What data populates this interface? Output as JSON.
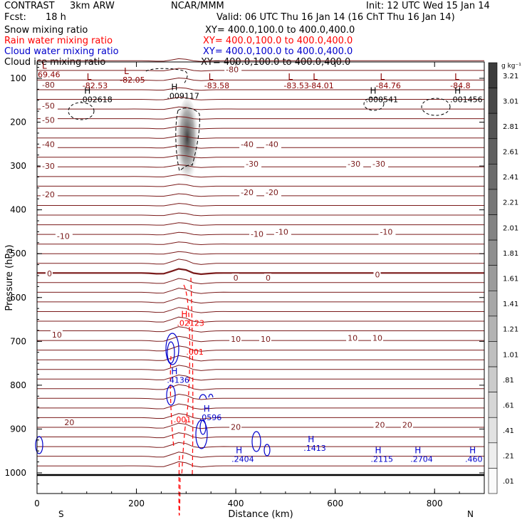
{
  "header": {
    "experiment": "CONTRAST",
    "model": "3km ARW",
    "institution": "NCAR/MMM",
    "init": "Init: 12 UTC Wed 15 Jan 14",
    "fcst_label": "Fcst:",
    "fcst_value": "18 h",
    "valid": "Valid: 06 UTC Thu 16 Jan 14 (16 ChT Thu 16 Jan 14)"
  },
  "fields": [
    {
      "name": "Snow mixing ratio",
      "xy": "XY= 400.0,100.0 to 400.0,400.0",
      "color": "#000000"
    },
    {
      "name": "Rain water mixing ratio",
      "xy": "XY= 400.0,100.0 to 400.0,400.0",
      "color": "#ff0000"
    },
    {
      "name": "Cloud water mixing ratio",
      "xy": "XY= 400.0,100.0 to 400.0,400.0",
      "color": "#0000cc"
    },
    {
      "name": "Cloud ice mixing ratio",
      "xy": "XY= 400.0,100.0 to 400.0,400.0",
      "color": "#000000"
    }
  ],
  "chart_data": {
    "type": "contour cross-section",
    "xlabel": "Distance (km)",
    "ylabel": "Pressure (hPa)",
    "xlim": [
      0,
      900
    ],
    "ylim": [
      1050,
      50
    ],
    "x_ticks": [
      "0",
      "200",
      "400",
      "600",
      "800"
    ],
    "y_ticks": [
      "100",
      "200",
      "300",
      "400",
      "500",
      "600",
      "700",
      "800",
      "900",
      "1000"
    ],
    "end_labels": {
      "left": "S",
      "right": "N"
    },
    "colorbar": {
      "unit": "g kg⁻¹",
      "levels": [
        "3.21",
        "3.01",
        "2.81",
        "2.61",
        "2.41",
        "2.21",
        "2.01",
        "1.81",
        "1.61",
        "1.41",
        "1.21",
        "1.01",
        ".81",
        ".61",
        ".41",
        ".21",
        ".01"
      ]
    },
    "temperature_contour_labels": [
      {
        "text": "-80",
        "x": 380,
        "p": 80
      },
      {
        "text": "-80",
        "x": 10,
        "p": 115
      },
      {
        "text": "-50",
        "x": 10,
        "p": 195
      },
      {
        "text": "-50",
        "x": 10,
        "p": 163
      },
      {
        "text": "-40",
        "x": 10,
        "p": 250
      },
      {
        "text": "-40",
        "x": 410,
        "p": 250
      },
      {
        "text": "-40",
        "x": 460,
        "p": 250
      },
      {
        "text": "-30",
        "x": 10,
        "p": 300
      },
      {
        "text": "-30",
        "x": 420,
        "p": 295
      },
      {
        "text": "-30",
        "x": 625,
        "p": 295
      },
      {
        "text": "-30",
        "x": 675,
        "p": 295
      },
      {
        "text": "-20",
        "x": 10,
        "p": 365
      },
      {
        "text": "-20",
        "x": 410,
        "p": 360
      },
      {
        "text": "-20",
        "x": 460,
        "p": 360
      },
      {
        "text": "-10",
        "x": 40,
        "p": 460
      },
      {
        "text": "-10",
        "x": 430,
        "p": 455
      },
      {
        "text": "-10",
        "x": 480,
        "p": 450
      },
      {
        "text": "-10",
        "x": 690,
        "p": 450
      },
      {
        "text": "0",
        "x": 20,
        "p": 545
      },
      {
        "text": "0",
        "x": 395,
        "p": 555
      },
      {
        "text": "0",
        "x": 460,
        "p": 555
      },
      {
        "text": "0",
        "x": 680,
        "p": 548
      },
      {
        "text": "10",
        "x": 30,
        "p": 685
      },
      {
        "text": "10",
        "x": 390,
        "p": 695
      },
      {
        "text": "10",
        "x": 450,
        "p": 695
      },
      {
        "text": "10",
        "x": 625,
        "p": 692
      },
      {
        "text": "10",
        "x": 675,
        "p": 692
      },
      {
        "text": "20",
        "x": 55,
        "p": 885
      },
      {
        "text": "20",
        "x": 390,
        "p": 895
      },
      {
        "text": "20",
        "x": 680,
        "p": 890
      },
      {
        "text": "20",
        "x": 735,
        "p": 890
      }
    ],
    "extrema": [
      {
        "kind": "L",
        "value": "69.46",
        "x": 10,
        "p": 78,
        "color": "#8b0000"
      },
      {
        "kind": "L",
        "value": "-82.53",
        "x": 100,
        "p": 103,
        "color": "#8b0000"
      },
      {
        "kind": "L",
        "value": "-82.05",
        "x": 175,
        "p": 90,
        "color": "#8b0000"
      },
      {
        "kind": "L",
        "value": "-83.58",
        "x": 345,
        "p": 103,
        "color": "#8b0000"
      },
      {
        "kind": "L",
        "value": "-83.53",
        "x": 505,
        "p": 103,
        "color": "#8b0000"
      },
      {
        "kind": "L",
        "value": "-84.01",
        "x": 555,
        "p": 103,
        "color": "#8b0000"
      },
      {
        "kind": "L",
        "value": "-84.76",
        "x": 690,
        "p": 103,
        "color": "#8b0000"
      },
      {
        "kind": "L",
        "value": "-84.8",
        "x": 840,
        "p": 103,
        "color": "#8b0000"
      },
      {
        "kind": "H",
        "value": ".002618",
        "x": 95,
        "p": 135,
        "color": "#000000"
      },
      {
        "kind": "H",
        "value": ".009117",
        "x": 270,
        "p": 127,
        "color": "#000000"
      },
      {
        "kind": "H",
        "value": ".000541",
        "x": 670,
        "p": 135,
        "color": "#000000"
      },
      {
        "kind": "H",
        "value": ".001456",
        "x": 840,
        "p": 135,
        "color": "#000000"
      },
      {
        "kind": "H",
        "value": ".02123",
        "x": 290,
        "p": 645,
        "color": "#ff0000"
      },
      {
        "kind": "H",
        "value": ".4136",
        "x": 270,
        "p": 775,
        "color": "#0000cc"
      },
      {
        "kind": "H",
        "value": ".0596",
        "x": 335,
        "p": 860,
        "color": "#0000cc"
      },
      {
        "kind": "H",
        "value": ".2404",
        "x": 400,
        "p": 955,
        "color": "#0000cc"
      },
      {
        "kind": "H",
        "value": ".1413",
        "x": 545,
        "p": 930,
        "color": "#0000cc"
      },
      {
        "kind": "H",
        "value": ".2115",
        "x": 680,
        "p": 955,
        "color": "#0000cc"
      },
      {
        "kind": "H",
        "value": ".2704",
        "x": 760,
        "p": 955,
        "color": "#0000cc"
      },
      {
        "kind": "H",
        "value": ".460",
        "x": 870,
        "p": 955,
        "color": "#0000cc"
      }
    ],
    "rain_labels": [
      {
        "text": ".001",
        "x": 300,
        "p": 730
      },
      {
        "text": ".001",
        "x": 275,
        "p": 885
      }
    ]
  }
}
